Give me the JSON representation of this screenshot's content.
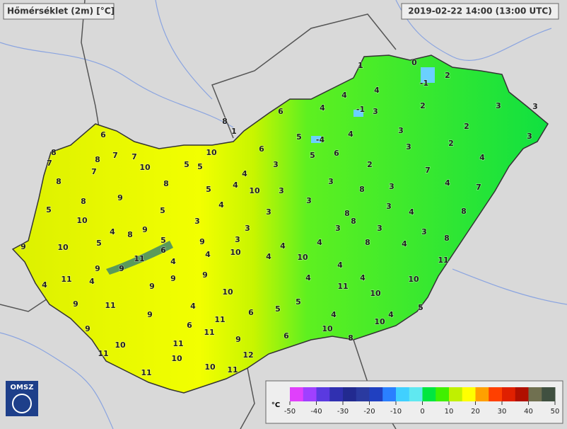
{
  "header": {
    "title": "Hőmérséklet (2m) [°C]",
    "timestamp": "2019-02-22 14:00 (13:00 UTC)"
  },
  "logo": "OMSZ",
  "legend": {
    "unit": "°C",
    "ticks": [
      -50,
      -40,
      -30,
      -20,
      -10,
      0,
      10,
      20,
      30,
      40,
      50
    ]
  },
  "stations": [
    1,
    0,
    2,
    -1,
    4,
    4,
    4,
    -1,
    3,
    2,
    3,
    3,
    6,
    8,
    1,
    5,
    -4,
    4,
    3,
    2,
    3,
    6,
    6,
    5,
    6,
    3,
    2,
    4,
    8,
    7,
    7,
    10,
    7,
    8,
    10,
    5,
    5,
    3,
    2,
    7,
    7,
    8,
    8,
    4,
    4,
    3,
    3,
    4,
    7,
    10,
    5,
    3,
    8,
    8,
    9,
    4,
    3,
    3,
    4,
    8,
    5,
    5,
    3,
    8,
    10,
    3,
    8,
    9,
    4,
    8,
    5,
    3,
    3,
    3,
    3,
    8,
    9,
    10,
    9,
    5,
    3,
    4,
    4,
    4,
    8,
    6,
    10,
    4,
    4,
    10,
    11,
    9,
    9,
    4,
    4,
    11,
    9,
    11,
    4,
    4,
    4,
    10,
    9,
    9,
    4,
    11,
    10,
    11,
    9,
    4,
    10,
    11,
    9,
    6,
    5,
    5,
    4,
    4,
    5,
    10,
    9,
    6,
    10,
    11,
    9,
    6,
    8,
    11,
    11,
    10,
    10,
    12,
    11,
    10,
    11
  ]
}
